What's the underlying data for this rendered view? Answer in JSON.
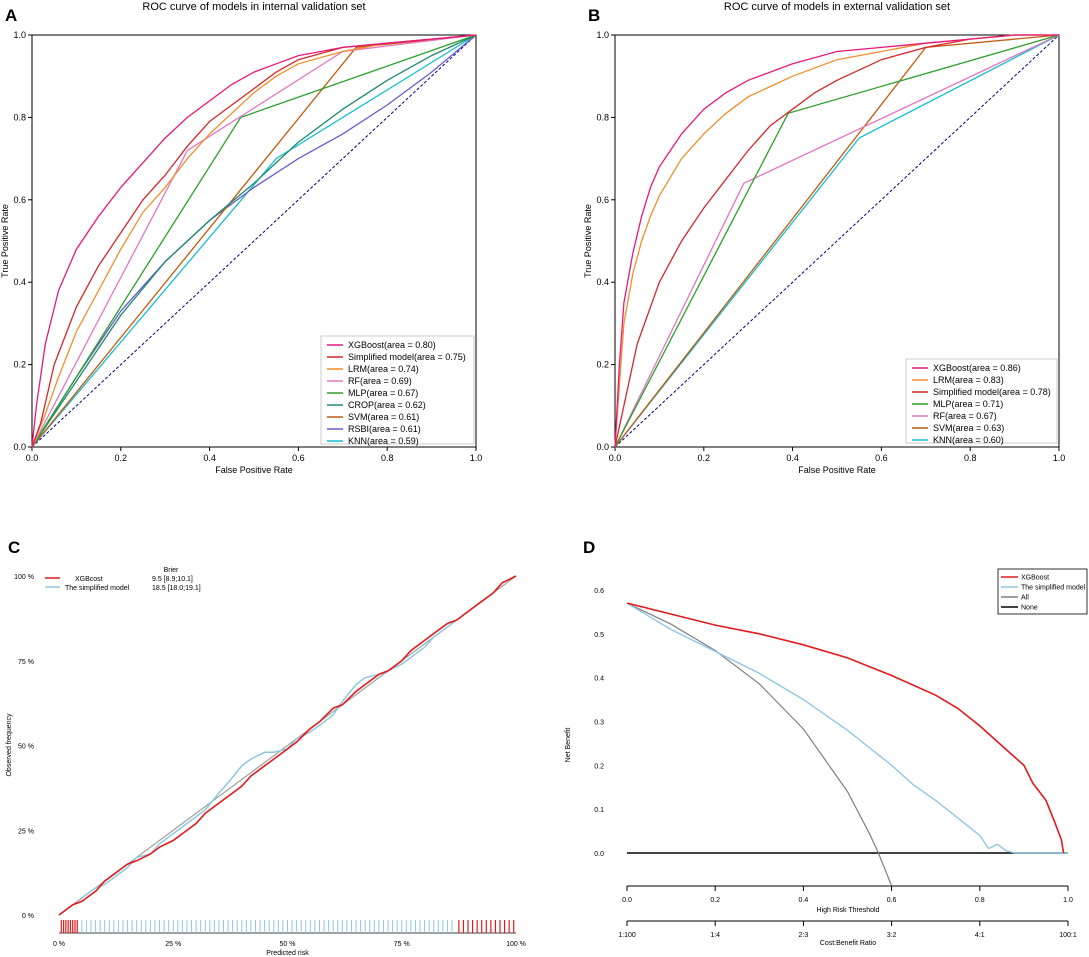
{
  "panels": [
    {
      "letter": "A",
      "title": "ROC curve of models in internal validation set"
    },
    {
      "letter": "B",
      "title": "ROC curve of models in external validation set"
    },
    {
      "letter": "C",
      "title": ""
    },
    {
      "letter": "D",
      "title": ""
    }
  ],
  "chart_data": [
    {
      "type": "line",
      "panel": "A",
      "title": "ROC curve of models in internal validation set",
      "xlabel": "False Positive Rate",
      "ylabel": "True Positive Rate",
      "xlim": [
        0,
        1
      ],
      "ylim": [
        0,
        1
      ],
      "xticks": [
        "0.0",
        "0.2",
        "0.4",
        "0.6",
        "0.8",
        "1.0"
      ],
      "yticks": [
        "0.0",
        "0.2",
        "0.4",
        "0.6",
        "0.8",
        "1.0"
      ],
      "legend_position": "lower-right",
      "reference_line": {
        "name": "chance",
        "color": "#000080",
        "style": "dashed"
      },
      "series": [
        {
          "name": "XGBoost(area = 0.80)",
          "color": "#e8187c",
          "x": [
            0,
            0.01,
            0.03,
            0.06,
            0.1,
            0.15,
            0.2,
            0.25,
            0.3,
            0.35,
            0.4,
            0.45,
            0.5,
            0.55,
            0.6,
            0.7,
            0.8,
            0.9,
            1
          ],
          "y": [
            0,
            0.1,
            0.25,
            0.38,
            0.48,
            0.56,
            0.63,
            0.69,
            0.75,
            0.8,
            0.84,
            0.88,
            0.91,
            0.93,
            0.95,
            0.97,
            0.98,
            0.99,
            1
          ]
        },
        {
          "name": "Simplified model(area = 0.75)",
          "color": "#d62728",
          "x": [
            0,
            0.02,
            0.05,
            0.1,
            0.15,
            0.2,
            0.25,
            0.3,
            0.35,
            0.4,
            0.45,
            0.5,
            0.55,
            0.6,
            0.7,
            0.8,
            0.9,
            1
          ],
          "y": [
            0,
            0.06,
            0.2,
            0.34,
            0.44,
            0.52,
            0.6,
            0.66,
            0.73,
            0.79,
            0.83,
            0.87,
            0.91,
            0.94,
            0.97,
            0.98,
            0.99,
            1
          ]
        },
        {
          "name": "LRM(area = 0.74)",
          "color": "#f28e2b",
          "x": [
            0,
            0.03,
            0.06,
            0.1,
            0.15,
            0.2,
            0.25,
            0.3,
            0.35,
            0.4,
            0.45,
            0.5,
            0.55,
            0.6,
            0.7,
            0.8,
            0.9,
            1
          ],
          "y": [
            0,
            0.08,
            0.17,
            0.28,
            0.38,
            0.48,
            0.57,
            0.63,
            0.7,
            0.76,
            0.81,
            0.86,
            0.9,
            0.93,
            0.96,
            0.98,
            0.99,
            1
          ]
        },
        {
          "name": "RF(area = 0.69)",
          "color": "#e377c2",
          "x": [
            0,
            0.35,
            0.7,
            1
          ],
          "y": [
            0,
            0.72,
            0.96,
            1
          ]
        },
        {
          "name": "MLP(area = 0.67)",
          "color": "#2ca02c",
          "x": [
            0,
            0.47,
            1
          ],
          "y": [
            0,
            0.8,
            1
          ]
        },
        {
          "name": "CROP(area = 0.62)",
          "color": "#1f8a70",
          "x": [
            0,
            0.1,
            0.2,
            0.3,
            0.4,
            0.5,
            0.6,
            0.7,
            0.8,
            0.9,
            1
          ],
          "y": [
            0,
            0.16,
            0.32,
            0.45,
            0.55,
            0.64,
            0.74,
            0.82,
            0.89,
            0.95,
            1
          ]
        },
        {
          "name": "SVM(area = 0.61)",
          "color": "#c15b0f",
          "x": [
            0,
            0.73,
            1
          ],
          "y": [
            0,
            0.97,
            1
          ]
        },
        {
          "name": "RSBI(area = 0.61)",
          "color": "#6a5acd",
          "x": [
            0,
            0.1,
            0.2,
            0.3,
            0.4,
            0.5,
            0.6,
            0.7,
            0.8,
            0.9,
            1
          ],
          "y": [
            0,
            0.17,
            0.33,
            0.45,
            0.55,
            0.63,
            0.7,
            0.76,
            0.83,
            0.91,
            1
          ]
        },
        {
          "name": "KNN(area = 0.59)",
          "color": "#17becf",
          "x": [
            0,
            0.55,
            1
          ],
          "y": [
            0,
            0.7,
            1
          ]
        }
      ]
    },
    {
      "type": "line",
      "panel": "B",
      "title": "ROC curve of models in external validation set",
      "xlabel": "False Positive Rate",
      "ylabel": "True Positive Rate",
      "xlim": [
        0,
        1
      ],
      "ylim": [
        0,
        1
      ],
      "xticks": [
        "0.0",
        "0.2",
        "0.4",
        "0.6",
        "0.8",
        "1.0"
      ],
      "yticks": [
        "0.0",
        "0.2",
        "0.4",
        "0.6",
        "0.8",
        "1.0"
      ],
      "legend_position": "lower-right",
      "reference_line": {
        "name": "chance",
        "color": "#000080",
        "style": "dashed"
      },
      "series": [
        {
          "name": "XGBoost(area = 0.86)",
          "color": "#e8187c",
          "x": [
            0,
            0.01,
            0.02,
            0.04,
            0.06,
            0.08,
            0.1,
            0.15,
            0.2,
            0.25,
            0.3,
            0.4,
            0.5,
            0.6,
            0.7,
            0.8,
            0.9,
            1
          ],
          "y": [
            0,
            0.2,
            0.35,
            0.47,
            0.56,
            0.63,
            0.68,
            0.76,
            0.82,
            0.86,
            0.89,
            0.93,
            0.96,
            0.97,
            0.98,
            0.99,
            1,
            1
          ]
        },
        {
          "name": "LRM(area = 0.83)",
          "color": "#f28e2b",
          "x": [
            0,
            0.01,
            0.02,
            0.04,
            0.06,
            0.08,
            0.1,
            0.15,
            0.2,
            0.25,
            0.3,
            0.4,
            0.5,
            0.6,
            0.7,
            0.8,
            0.9,
            1
          ],
          "y": [
            0,
            0.15,
            0.3,
            0.42,
            0.5,
            0.56,
            0.61,
            0.7,
            0.76,
            0.81,
            0.85,
            0.9,
            0.94,
            0.96,
            0.98,
            0.99,
            1,
            1
          ]
        },
        {
          "name": "Simplified model(area = 0.78)",
          "color": "#d62728",
          "x": [
            0,
            0.02,
            0.05,
            0.1,
            0.15,
            0.2,
            0.25,
            0.3,
            0.35,
            0.4,
            0.45,
            0.5,
            0.6,
            0.7,
            0.8,
            0.9,
            1
          ],
          "y": [
            0,
            0.1,
            0.25,
            0.4,
            0.5,
            0.58,
            0.65,
            0.72,
            0.78,
            0.82,
            0.86,
            0.89,
            0.94,
            0.97,
            0.99,
            1,
            1
          ]
        },
        {
          "name": "MLP(area = 0.71)",
          "color": "#2ca02c",
          "x": [
            0,
            0.39,
            1
          ],
          "y": [
            0,
            0.81,
            1
          ]
        },
        {
          "name": "RF(area = 0.67)",
          "color": "#e377c2",
          "x": [
            0,
            0.29,
            1
          ],
          "y": [
            0,
            0.64,
            1
          ]
        },
        {
          "name": "SVM(area = 0.63)",
          "color": "#c15b0f",
          "x": [
            0,
            0.7,
            1
          ],
          "y": [
            0,
            0.97,
            1
          ]
        },
        {
          "name": "KNN(area = 0.60)",
          "color": "#17becf",
          "x": [
            0,
            0.55,
            1
          ],
          "y": [
            0,
            0.75,
            1
          ]
        }
      ]
    },
    {
      "type": "line",
      "panel": "C",
      "title": "",
      "xlabel": "Predicted risk",
      "ylabel": "Observed frequency",
      "xlim": [
        0,
        100
      ],
      "ylim": [
        0,
        100
      ],
      "xticks": [
        "0 %",
        "25 %",
        "50 %",
        "75 %",
        "100 %"
      ],
      "yticks": [
        "0 %",
        "25 %",
        "50 %",
        "75 %",
        "100 %"
      ],
      "legend_position": "top-left",
      "legend_header": "Brier",
      "series": [
        {
          "name": "XGBcost",
          "brier": "9.5 [8.9;10.1]",
          "color": "#e41a1c",
          "x": [
            0,
            3,
            5,
            8,
            10,
            12,
            15,
            17,
            20,
            22,
            25,
            27,
            30,
            32,
            35,
            37,
            40,
            42,
            45,
            47,
            50,
            52,
            55,
            57,
            60,
            62,
            65,
            67,
            70,
            72,
            75,
            77,
            80,
            82,
            85,
            87,
            90,
            92,
            95,
            97,
            100
          ],
          "y": [
            0,
            3,
            4,
            7,
            10,
            12,
            15,
            16,
            18,
            20,
            22,
            24,
            27,
            30,
            33,
            35,
            38,
            41,
            44,
            46,
            49,
            51,
            55,
            57,
            61,
            62,
            66,
            68,
            71,
            72,
            75,
            78,
            81,
            83,
            86,
            87,
            90,
            92,
            95,
            98,
            100
          ]
        },
        {
          "name": "The simplified model",
          "brier": "18.5 [18.0;19.1]",
          "color": "#8ec8e0",
          "x": [
            5,
            8,
            10,
            12,
            15,
            17,
            20,
            22,
            25,
            27,
            30,
            32,
            35,
            37,
            40,
            42,
            45,
            47,
            50,
            52,
            55,
            57,
            60,
            62,
            65,
            67,
            70,
            72,
            75,
            77,
            80,
            82,
            85,
            87,
            90,
            92,
            95
          ],
          "y": [
            5,
            8,
            9,
            11,
            14,
            17,
            18,
            21,
            24,
            26,
            29,
            31,
            36,
            39,
            44,
            46,
            48,
            48,
            49,
            52,
            54,
            56,
            59,
            63,
            68,
            70,
            71,
            72,
            74,
            76,
            79,
            82,
            85,
            87,
            90,
            92,
            95
          ]
        },
        {
          "name": "reference",
          "color": "#a0a0a0",
          "x": [
            0,
            100
          ],
          "y": [
            0,
            100
          ]
        }
      ],
      "rug": {
        "xgboost_low": [
          0.5,
          1,
          1.5,
          2,
          2.5,
          3,
          3.5,
          4
        ],
        "simplified_range": [
          5,
          86
        ],
        "xgboost_high": [
          87.5,
          88.5,
          89.5,
          90.5,
          91.5,
          92.5,
          93.5,
          94.5,
          95.5,
          96.5,
          97.5,
          98.5,
          99.5
        ]
      }
    },
    {
      "type": "line",
      "panel": "D",
      "title": "",
      "xlabel": "High Risk Threshold",
      "ylabel": "Net Benefit",
      "second_xlabel": "Cost:Benefit Ratio",
      "xlim": [
        0,
        1
      ],
      "ylim": [
        0,
        0.6
      ],
      "xticks": [
        "0.0",
        "0.2",
        "0.4",
        "0.6",
        "0.8",
        "1.0"
      ],
      "second_xticks": [
        "1:100",
        "1:4",
        "2:3",
        "3:2",
        "4:1",
        "100:1"
      ],
      "yticks": [
        "0.0",
        "0.1",
        "0.2",
        "0.3",
        "0.4",
        "0.5",
        "0.6"
      ],
      "legend_position": "top-right",
      "series": [
        {
          "name": "XGBoost",
          "color": "#e41a1c",
          "x": [
            0,
            0.1,
            0.2,
            0.3,
            0.4,
            0.5,
            0.6,
            0.7,
            0.75,
            0.8,
            0.85,
            0.9,
            0.92,
            0.95,
            0.97,
            0.985,
            0.99
          ],
          "y": [
            0.57,
            0.545,
            0.52,
            0.5,
            0.475,
            0.445,
            0.405,
            0.36,
            0.33,
            0.29,
            0.245,
            0.2,
            0.16,
            0.12,
            0.07,
            0.03,
            0
          ]
        },
        {
          "name": "The simplified model",
          "color": "#8ec8e0",
          "x": [
            0,
            0.05,
            0.1,
            0.2,
            0.3,
            0.4,
            0.5,
            0.6,
            0.65,
            0.7,
            0.75,
            0.8,
            0.82,
            0.84,
            0.86,
            0.88,
            1
          ],
          "y": [
            0.57,
            0.54,
            0.51,
            0.46,
            0.41,
            0.35,
            0.28,
            0.2,
            0.155,
            0.12,
            0.08,
            0.04,
            0.01,
            0.02,
            0.005,
            0,
            0
          ]
        },
        {
          "name": "All",
          "color": "#808080",
          "x": [
            0,
            0.1,
            0.2,
            0.3,
            0.4,
            0.5,
            0.55,
            0.57,
            0.6
          ],
          "y": [
            0.57,
            0.522,
            0.462,
            0.386,
            0.283,
            0.14,
            0.044,
            0,
            -0.075
          ]
        },
        {
          "name": "None",
          "color": "#000000",
          "x": [
            0,
            1
          ],
          "y": [
            0,
            0
          ]
        }
      ]
    }
  ]
}
